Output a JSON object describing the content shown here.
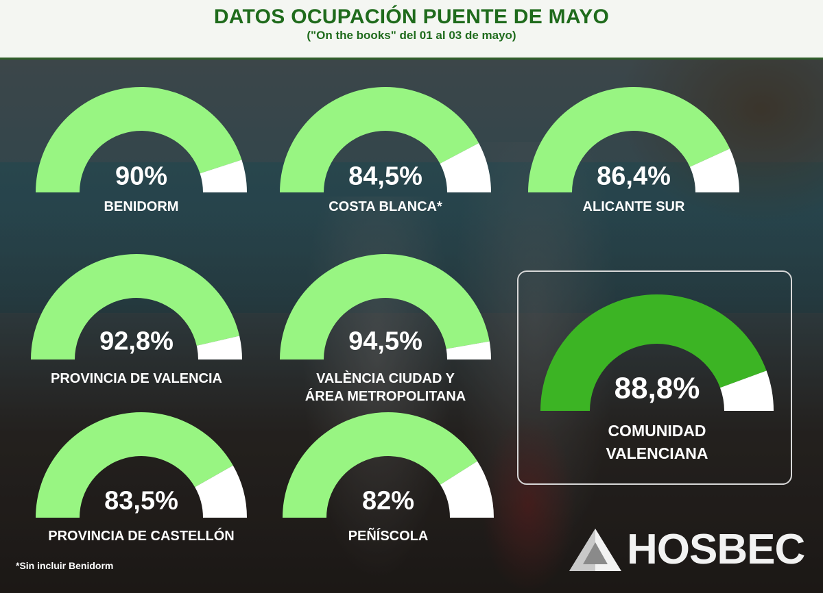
{
  "header": {
    "title": "DATOS OCUPACIÓN PUENTE DE MAYO",
    "subtitle": "(\"On the books\" del 01 al 03 de mayo)"
  },
  "colors": {
    "fill": "#98f582",
    "fill_highlight": "#3cb424",
    "remainder": "#ffffff",
    "title": "#1f6b1c"
  },
  "chart_data": {
    "type": "gauge",
    "max": 100,
    "gauges": [
      {
        "label": "BENIDORM",
        "value": 90,
        "value_text": "90%"
      },
      {
        "label": "COSTA BLANCA*",
        "value": 84.5,
        "value_text": "84,5%"
      },
      {
        "label": "ALICANTE SUR",
        "value": 86.4,
        "value_text": "86,4%"
      },
      {
        "label": "PROVINCIA DE VALENCIA",
        "value": 92.8,
        "value_text": "92,8%"
      },
      {
        "label": "VALÈNCIA CIUDAD Y",
        "label2": "ÁREA METROPOLITANA",
        "value": 94.5,
        "value_text": "94,5%"
      },
      {
        "label": "COMUNIDAD",
        "label2": "VALENCIANA",
        "value": 88.8,
        "value_text": "88,8%",
        "highlight": true
      },
      {
        "label": "PROVINCIA DE CASTELLÓN",
        "value": 83.5,
        "value_text": "83,5%"
      },
      {
        "label": "PEÑÍSCOLA",
        "value": 82,
        "value_text": "82%"
      }
    ]
  },
  "footnote": "*Sin incluir Benidorm",
  "logo": {
    "text": "HOSBEC",
    "icon": "triangle-logo-icon"
  }
}
